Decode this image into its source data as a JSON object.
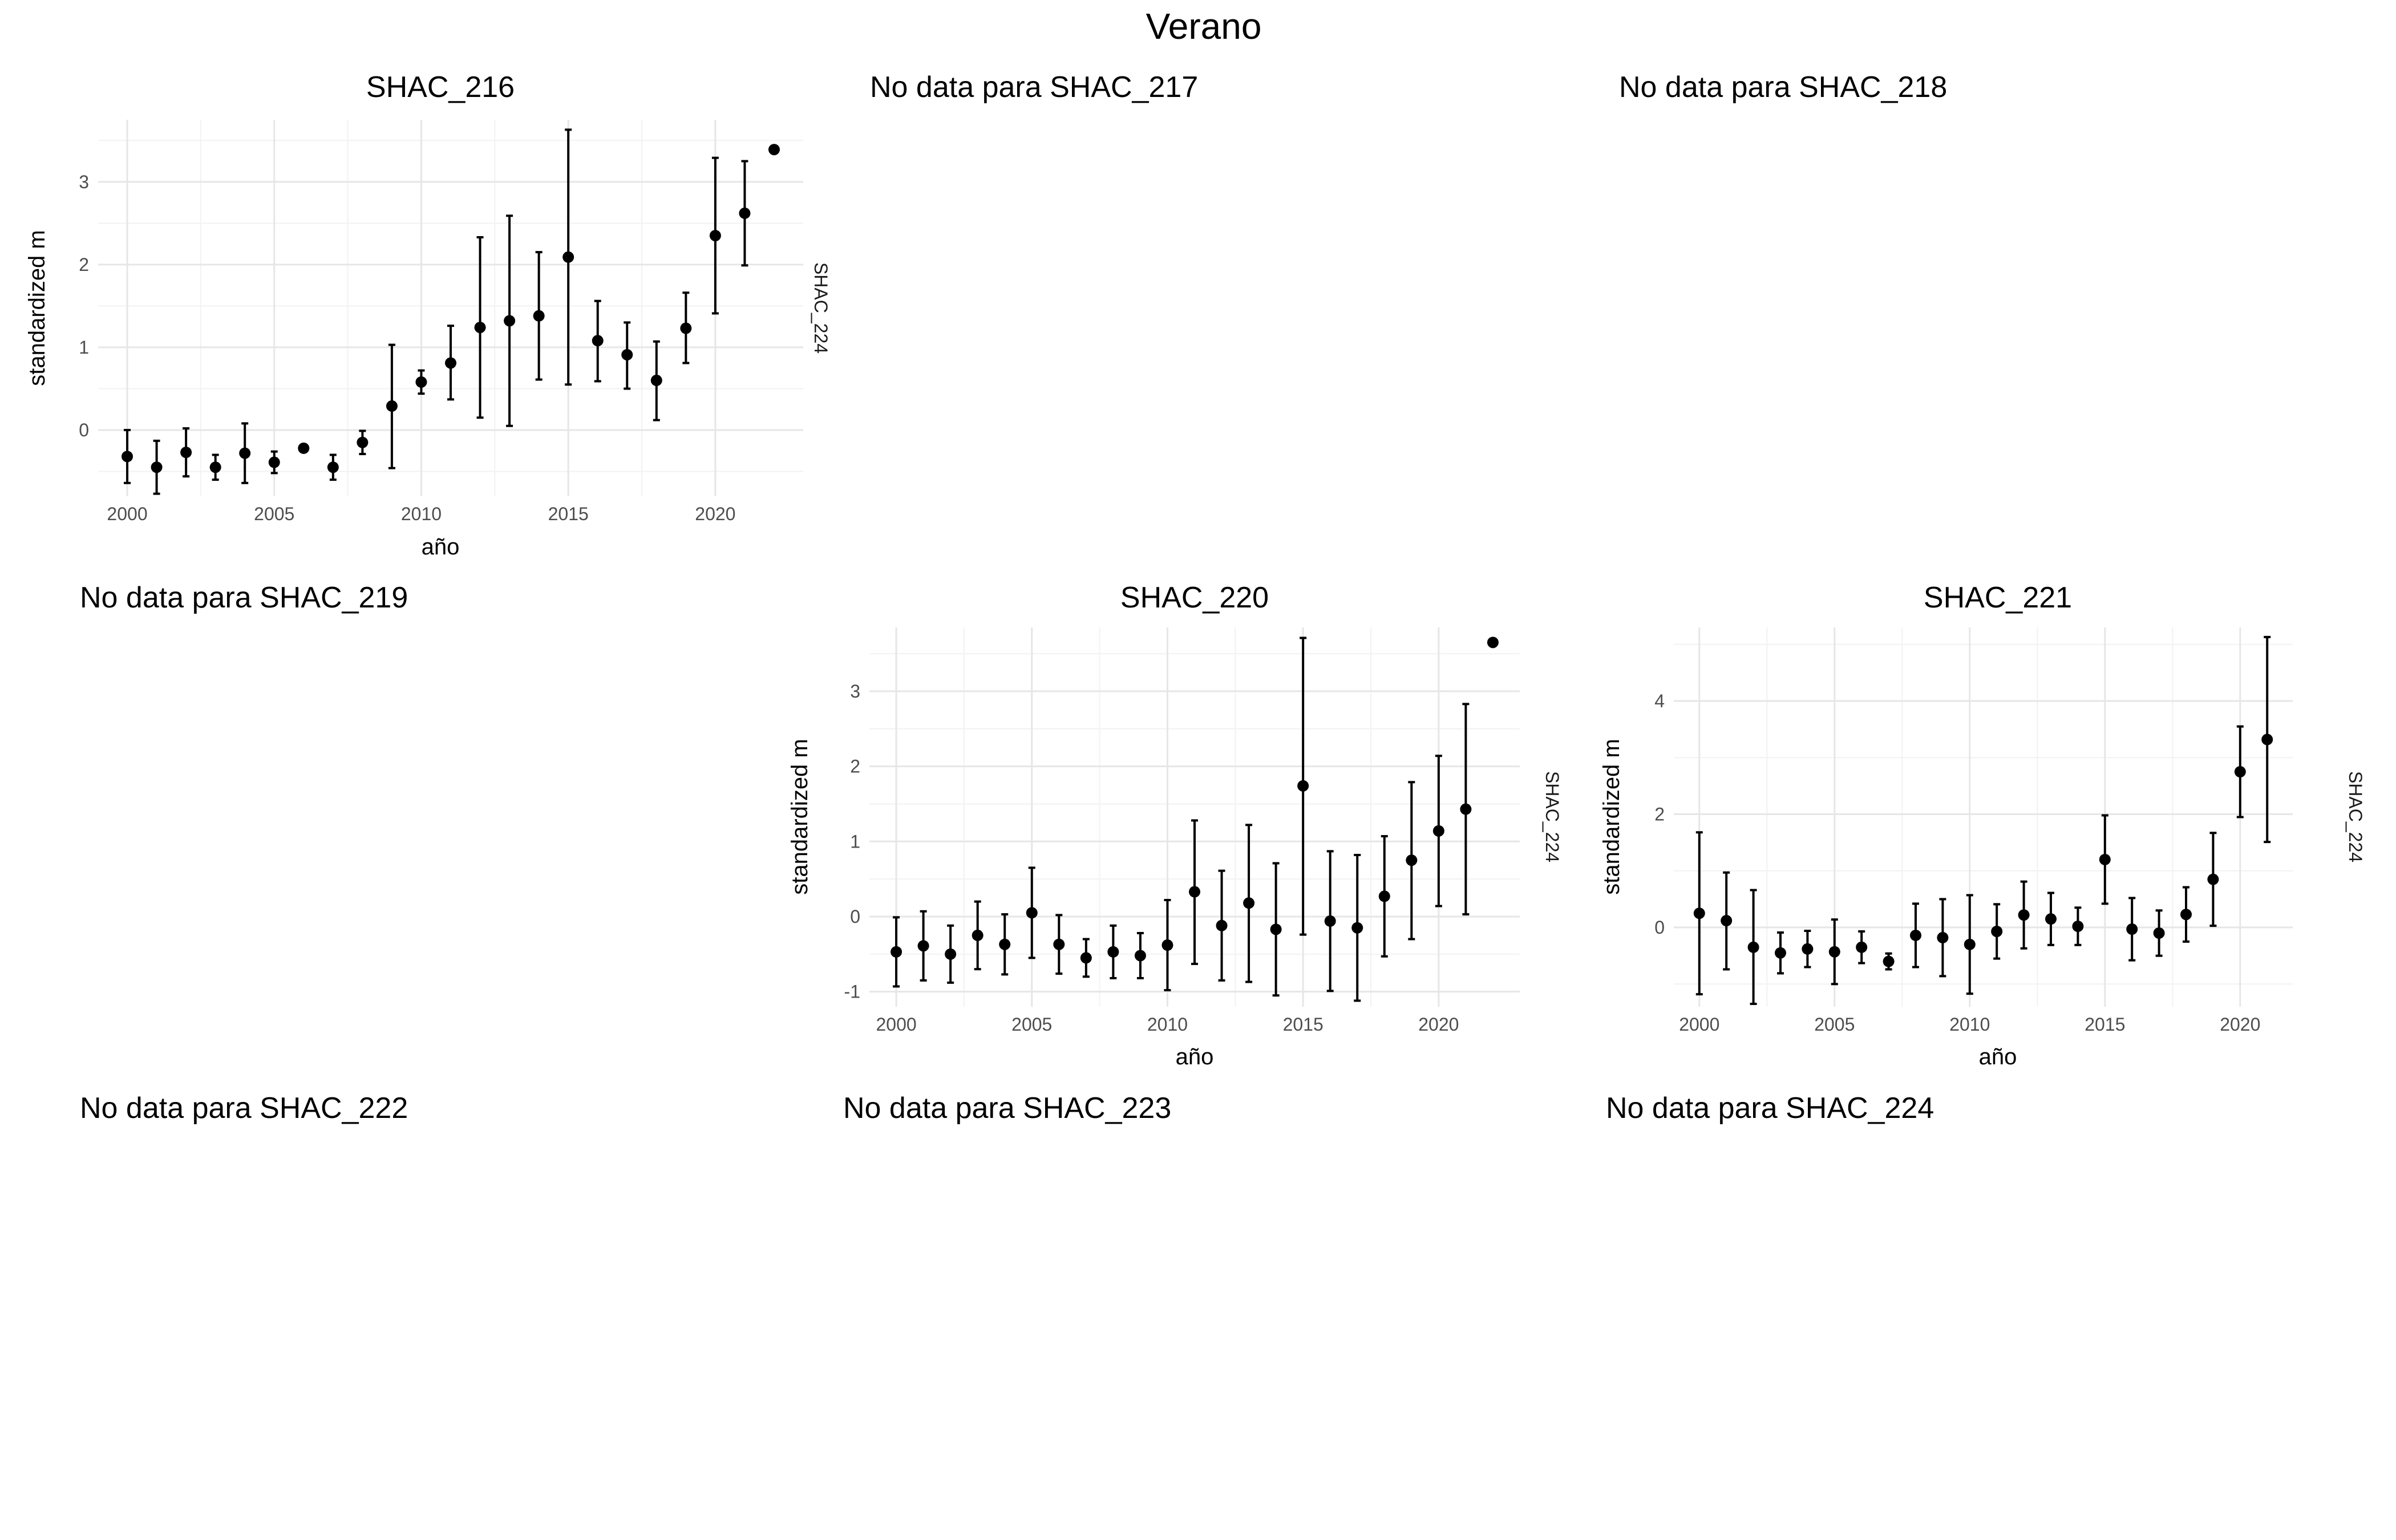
{
  "figure": {
    "title": "Verano"
  },
  "chart_data": [
    {
      "type": "scatter",
      "title": "SHAC_216",
      "xlabel": "año",
      "ylabel": "standardized m",
      "strip_label": "SHAC_224",
      "xlim": [
        2000,
        2022
      ],
      "ylim": [
        -0.8,
        3.75
      ],
      "xticks": [
        2000,
        2005,
        2010,
        2015,
        2020
      ],
      "yticks": [
        0,
        1,
        2,
        3
      ],
      "grid": true,
      "series": [
        {
          "x": [
            2000,
            2001,
            2002,
            2003,
            2004,
            2005,
            2006,
            2007,
            2008,
            2009,
            2010,
            2011,
            2012,
            2013,
            2014,
            2015,
            2016,
            2017,
            2018,
            2019,
            2020,
            2021,
            2022
          ],
          "y": [
            -0.32,
            -0.45,
            -0.27,
            -0.45,
            -0.28,
            -0.39,
            -0.22,
            -0.45,
            -0.15,
            0.29,
            0.58,
            0.81,
            1.24,
            1.32,
            1.38,
            2.09,
            1.08,
            0.91,
            0.6,
            1.23,
            2.35,
            2.62,
            3.39
          ],
          "ymin": [
            -0.64,
            -0.77,
            -0.56,
            -0.6,
            -0.64,
            -0.52,
            -0.22,
            -0.6,
            -0.29,
            -0.46,
            0.44,
            0.37,
            0.15,
            0.05,
            0.61,
            0.55,
            0.59,
            0.5,
            0.12,
            0.81,
            1.41,
            1.99,
            3.39
          ],
          "ymax": [
            0.0,
            -0.13,
            0.02,
            -0.3,
            0.08,
            -0.26,
            -0.22,
            -0.3,
            -0.01,
            1.03,
            0.72,
            1.26,
            2.33,
            2.59,
            2.15,
            3.63,
            1.56,
            1.3,
            1.07,
            1.66,
            3.29,
            3.25,
            3.39
          ]
        }
      ]
    },
    {
      "type": "scatter",
      "title": "SHAC_220",
      "xlabel": "año",
      "ylabel": "standardized m",
      "strip_label": "SHAC_224",
      "xlim": [
        2000,
        2022
      ],
      "ylim": [
        -1.2,
        3.85
      ],
      "xticks": [
        2000,
        2005,
        2010,
        2015,
        2020
      ],
      "yticks": [
        -1,
        0,
        1,
        2,
        3
      ],
      "grid": true,
      "series": [
        {
          "x": [
            2000,
            2001,
            2002,
            2003,
            2004,
            2005,
            2006,
            2007,
            2008,
            2009,
            2010,
            2011,
            2012,
            2013,
            2014,
            2015,
            2016,
            2017,
            2018,
            2019,
            2020,
            2021,
            2022
          ],
          "y": [
            -0.47,
            -0.39,
            -0.5,
            -0.25,
            -0.37,
            0.05,
            -0.37,
            -0.55,
            -0.47,
            -0.52,
            -0.38,
            0.33,
            -0.12,
            0.18,
            -0.17,
            1.74,
            -0.06,
            -0.15,
            0.27,
            0.75,
            1.14,
            1.43,
            3.65
          ],
          "ymin": [
            -0.93,
            -0.85,
            -0.88,
            -0.7,
            -0.77,
            -0.55,
            -0.76,
            -0.8,
            -0.82,
            -0.82,
            -0.98,
            -0.63,
            -0.85,
            -0.87,
            -1.05,
            -0.24,
            -0.99,
            -1.12,
            -0.53,
            -0.3,
            0.14,
            0.03,
            3.65
          ],
          "ymax": [
            -0.01,
            0.07,
            -0.12,
            0.2,
            0.03,
            0.65,
            0.02,
            -0.3,
            -0.12,
            -0.22,
            0.22,
            1.28,
            0.61,
            1.22,
            0.71,
            3.71,
            0.87,
            0.82,
            1.07,
            1.79,
            2.14,
            2.83,
            3.65
          ]
        }
      ]
    },
    {
      "type": "scatter",
      "title": "SHAC_221",
      "xlabel": "año",
      "ylabel": "standardized m",
      "strip_label": "SHAC_224",
      "xlim": [
        2000,
        2021
      ],
      "ylim": [
        -1.4,
        5.3
      ],
      "xticks": [
        2000,
        2005,
        2010,
        2015,
        2020
      ],
      "yticks": [
        0,
        2,
        4
      ],
      "grid": true,
      "series": [
        {
          "x": [
            2000,
            2001,
            2002,
            2003,
            2004,
            2005,
            2006,
            2007,
            2008,
            2009,
            2010,
            2011,
            2012,
            2013,
            2014,
            2015,
            2016,
            2017,
            2018,
            2019,
            2020,
            2021
          ],
          "y": [
            0.25,
            0.12,
            -0.35,
            -0.45,
            -0.38,
            -0.43,
            -0.35,
            -0.6,
            -0.14,
            -0.18,
            -0.3,
            -0.07,
            0.22,
            0.15,
            0.02,
            1.2,
            -0.03,
            -0.1,
            0.23,
            0.85,
            2.75,
            3.32
          ],
          "ymin": [
            -1.18,
            -0.74,
            -1.35,
            -0.81,
            -0.7,
            -1.0,
            -0.63,
            -0.74,
            -0.7,
            -0.86,
            -1.17,
            -0.55,
            -0.37,
            -0.31,
            -0.31,
            0.42,
            -0.58,
            -0.5,
            -0.25,
            0.03,
            1.95,
            1.51
          ],
          "ymax": [
            1.68,
            0.97,
            0.66,
            -0.09,
            -0.06,
            0.14,
            -0.07,
            -0.46,
            0.42,
            0.5,
            0.57,
            0.41,
            0.81,
            0.61,
            0.35,
            1.98,
            0.52,
            0.3,
            0.71,
            1.67,
            3.55,
            5.13
          ]
        }
      ]
    }
  ],
  "empty_panels": [
    {
      "label": "No data para SHAC_217"
    },
    {
      "label": "No data para SHAC_218"
    },
    {
      "label": "No data para SHAC_219"
    },
    {
      "label": "No data para SHAC_222"
    },
    {
      "label": "No data para SHAC_223"
    },
    {
      "label": "No data para SHAC_224"
    }
  ]
}
